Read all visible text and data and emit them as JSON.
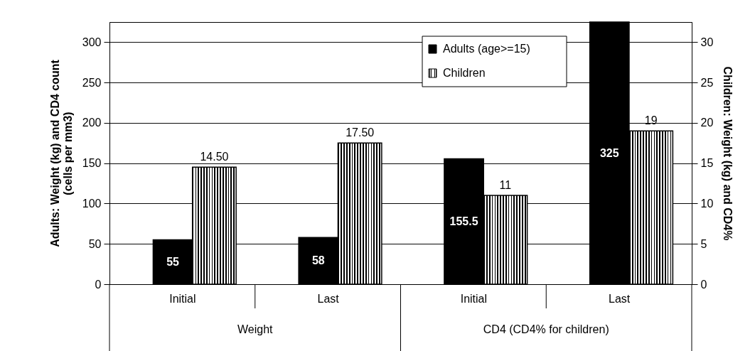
{
  "chart_data": {
    "type": "bar",
    "categories": [
      "Initial",
      "Last",
      "Initial",
      "Last"
    ],
    "ylabel": "Adults: Weight (kg) and CD4 count (cells per mm3)",
    "y2label": "Children: Weight (kg) and CD4%",
    "ylim": [
      0,
      325
    ],
    "yticks": [
      0,
      50,
      100,
      150,
      200,
      250,
      300
    ],
    "y2lim": [
      0,
      32.5
    ],
    "y2ticks": [
      0,
      5,
      10,
      15,
      20,
      25,
      30
    ],
    "grid": "y",
    "legend": "top",
    "annotations": [
      "Weight",
      "CD4 (CD4% for children)"
    ],
    "series": [
      {
        "name": "Adults (age>=15)",
        "color": "#000000",
        "values": [
          55,
          58,
          155.5,
          325
        ],
        "value_labels": [
          "55",
          "58",
          "155.5",
          "325"
        ]
      },
      {
        "name": "Children",
        "color": "#000000",
        "axis": "y2",
        "values": [
          14.5,
          17.5,
          11,
          19
        ],
        "value_labels": [
          "14.50",
          "17.50",
          "11",
          "19"
        ]
      }
    ]
  }
}
